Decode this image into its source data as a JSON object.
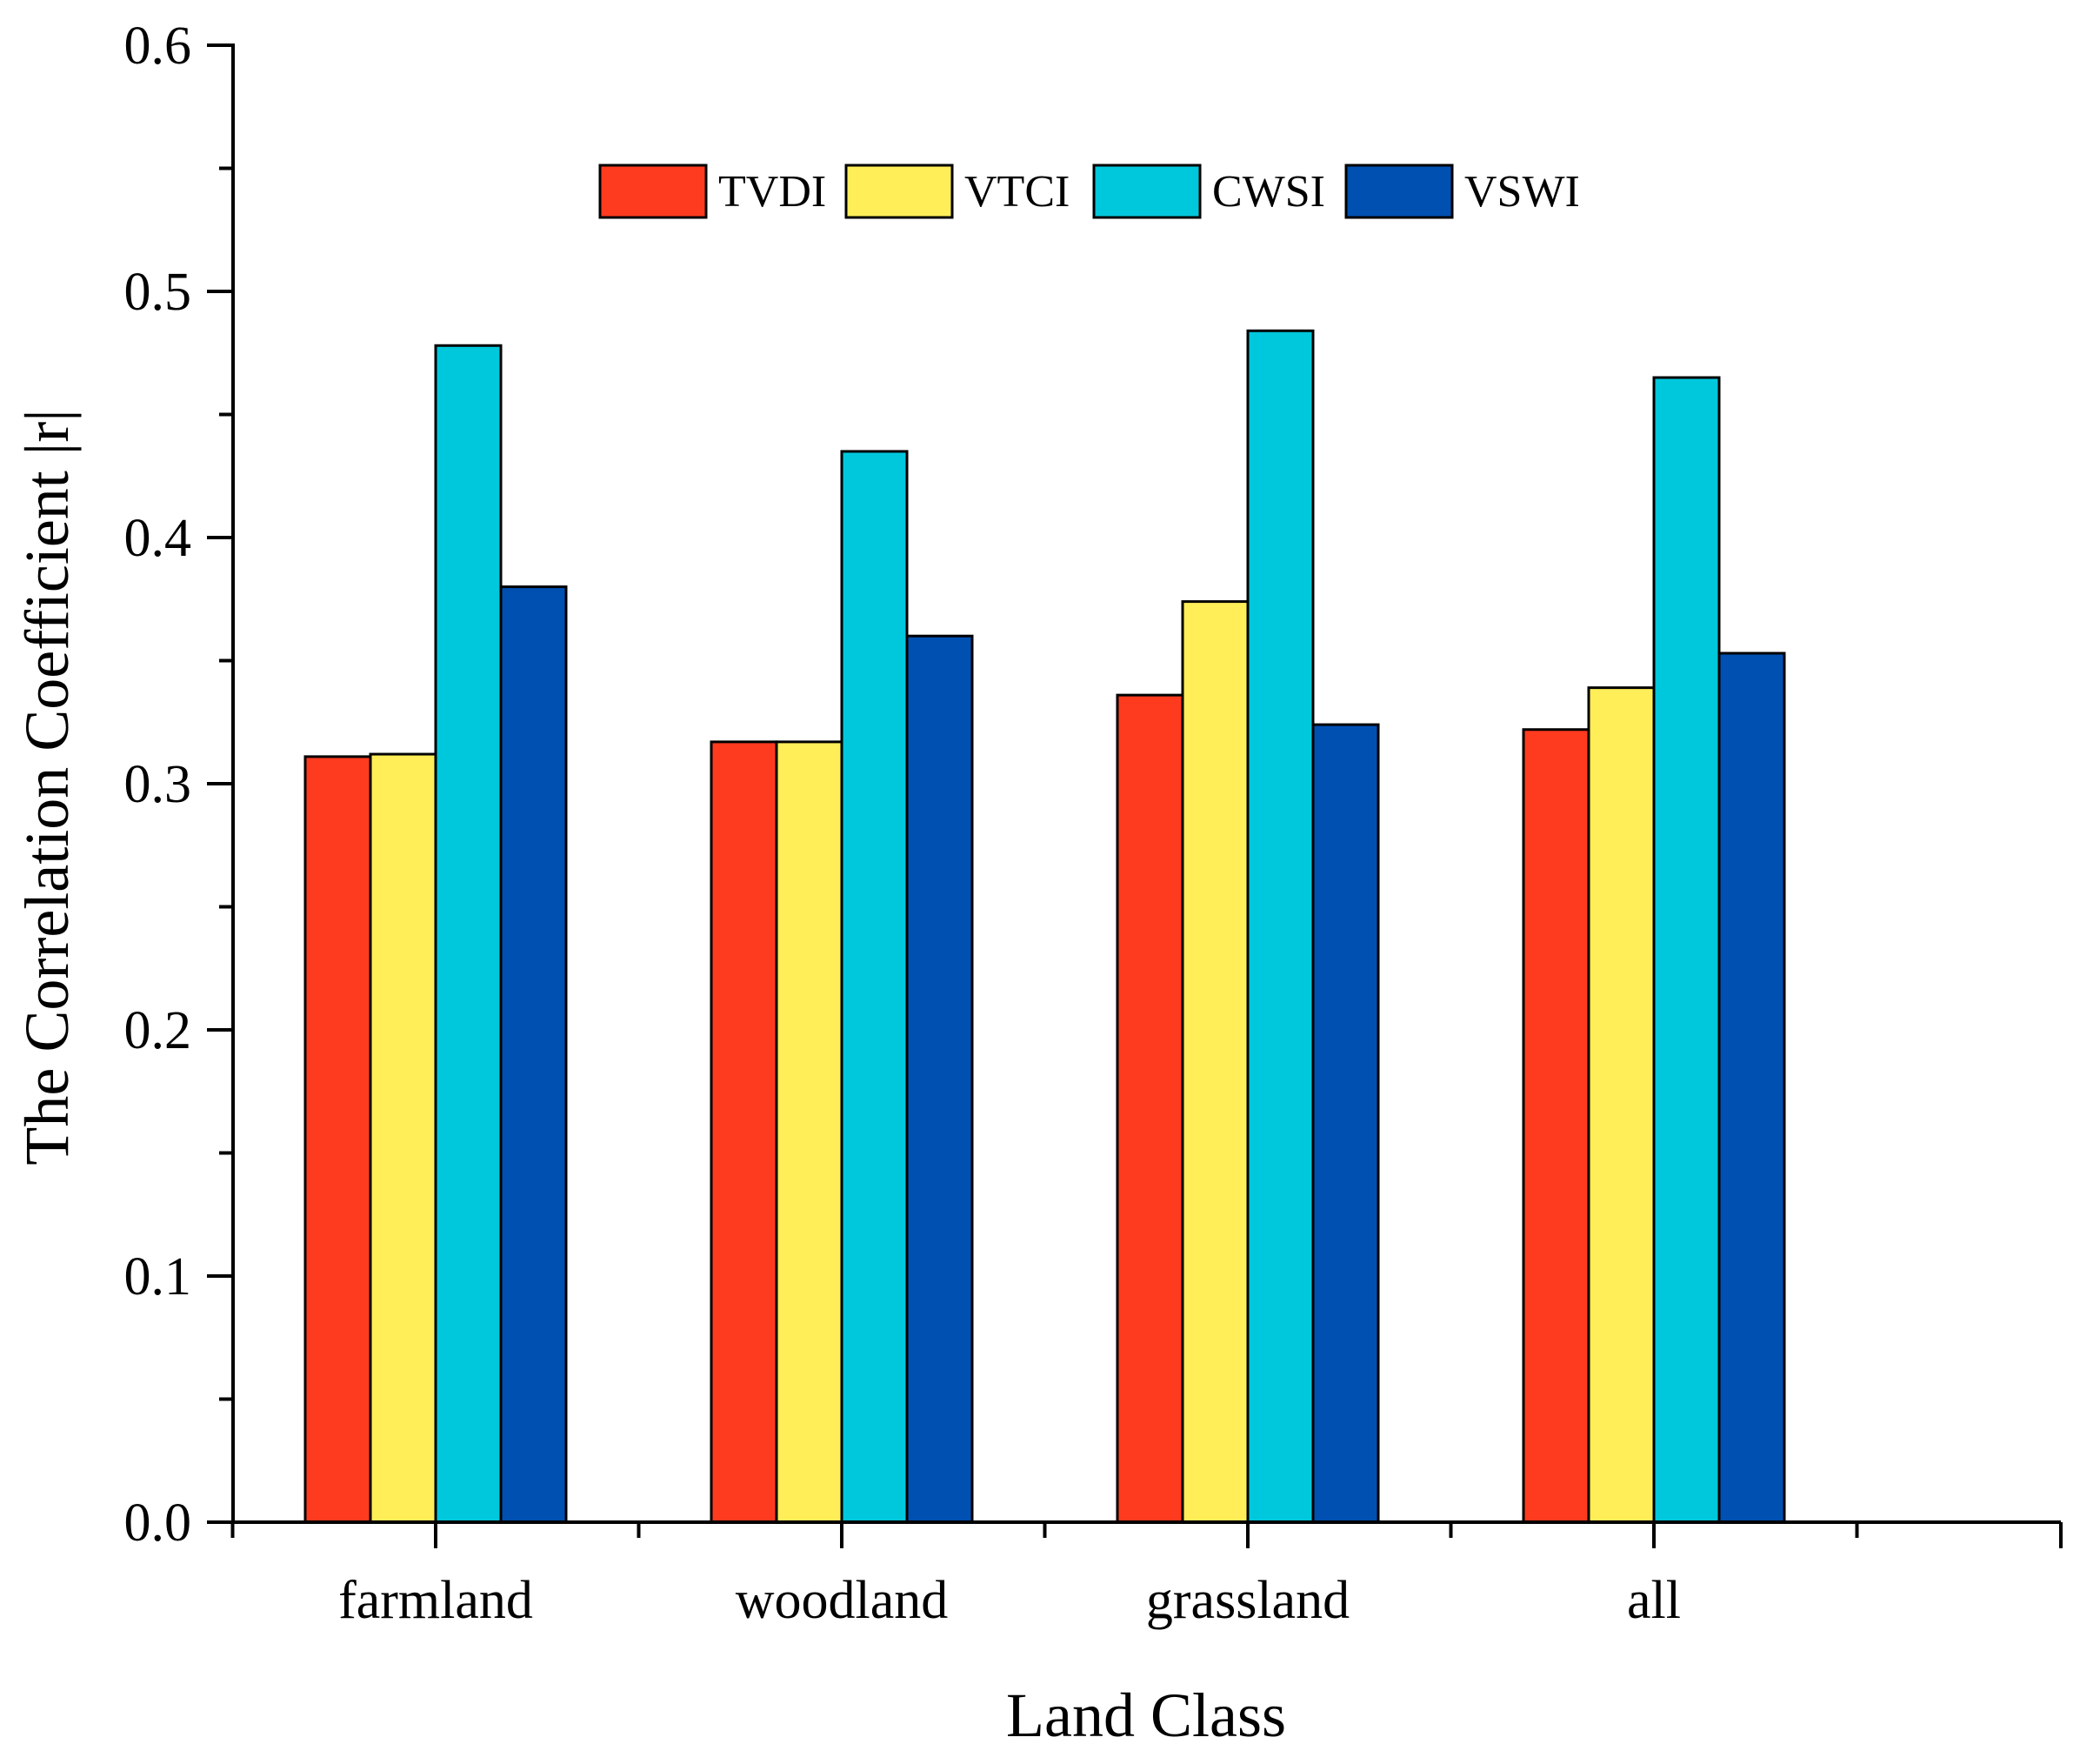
{
  "chart_data": {
    "type": "bar",
    "title": "",
    "xlabel": "Land Class",
    "ylabel": "The Correlation Coefficient |r|",
    "categories": [
      "farmland",
      "woodland",
      "grassland",
      "all"
    ],
    "ylim": [
      0.0,
      0.6
    ],
    "yticks": [
      "0.0",
      "0.1",
      "0.2",
      "0.3",
      "0.4",
      "0.5",
      "0.6"
    ],
    "grid": false,
    "legend_position": "top-center",
    "series": [
      {
        "name": "TVDI",
        "color": "#ff3b1f",
        "values": [
          0.311,
          0.317,
          0.336,
          0.322
        ]
      },
      {
        "name": "VTCI",
        "color": "#ffee58",
        "values": [
          0.312,
          0.317,
          0.374,
          0.339
        ]
      },
      {
        "name": "CWSI",
        "color": "#00c8dc",
        "values": [
          0.478,
          0.435,
          0.484,
          0.465
        ]
      },
      {
        "name": "VSWI",
        "color": "#0050b2",
        "values": [
          0.38,
          0.36,
          0.324,
          0.353
        ]
      }
    ]
  }
}
